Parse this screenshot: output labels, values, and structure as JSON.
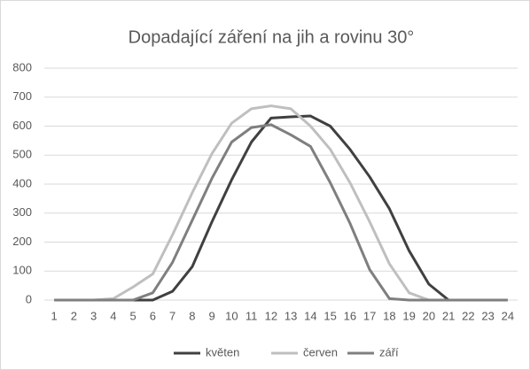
{
  "chart_data": {
    "type": "line",
    "title": "Dopadající záření na jih a rovinu 30°",
    "categories": [
      "1",
      "2",
      "3",
      "4",
      "5",
      "6",
      "7",
      "8",
      "9",
      "10",
      "11",
      "12",
      "13",
      "14",
      "15",
      "16",
      "17",
      "18",
      "19",
      "20",
      "21",
      "22",
      "23",
      "24"
    ],
    "series": [
      {
        "name": "květen",
        "color": "#404040",
        "values": [
          0,
          0,
          0,
          0,
          0,
          0,
          30,
          115,
          270,
          415,
          545,
          628,
          632,
          635,
          600,
          520,
          425,
          315,
          170,
          55,
          0,
          0,
          0,
          0
        ]
      },
      {
        "name": "červen",
        "color": "#bfbfbf",
        "values": [
          0,
          0,
          0,
          5,
          45,
          90,
          225,
          370,
          505,
          610,
          660,
          670,
          660,
          600,
          520,
          405,
          270,
          125,
          25,
          0,
          0,
          0,
          0,
          0
        ]
      },
      {
        "name": "září",
        "color": "#7f7f7f",
        "values": [
          0,
          0,
          0,
          0,
          0,
          25,
          130,
          275,
          420,
          545,
          595,
          605,
          570,
          530,
          405,
          265,
          105,
          5,
          0,
          0,
          0,
          0,
          0,
          0
        ]
      }
    ],
    "ylim": [
      0,
      800
    ],
    "yticks": [
      0,
      100,
      200,
      300,
      400,
      500,
      600,
      700,
      800
    ],
    "grid": true,
    "legend": "bottom"
  }
}
